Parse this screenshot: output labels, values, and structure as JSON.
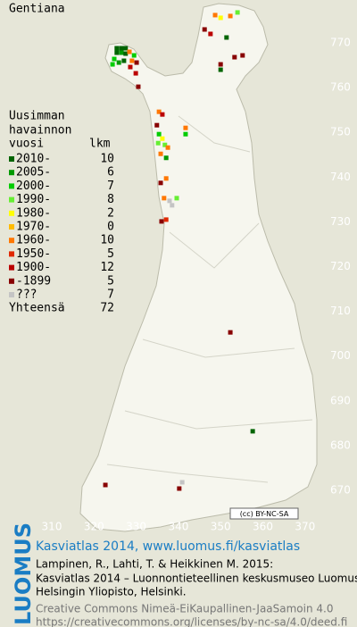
{
  "title": "Gentiana",
  "legend": {
    "heading": [
      "Uusimman",
      "havainnon",
      "vuosi"
    ],
    "count_heading": "lkm",
    "rows": [
      {
        "label": "2010-",
        "count": 10,
        "color": "#006400"
      },
      {
        "label": "2005-",
        "count": 6,
        "color": "#009a00"
      },
      {
        "label": "2000-",
        "count": 7,
        "color": "#00cc00"
      },
      {
        "label": "1990-",
        "count": 8,
        "color": "#66ee33"
      },
      {
        "label": "1980-",
        "count": 2,
        "color": "#ffff00"
      },
      {
        "label": "1970-",
        "count": 0,
        "color": "#ffbb00"
      },
      {
        "label": "1960-",
        "count": 10,
        "color": "#ff7700"
      },
      {
        "label": "1950-",
        "count": 5,
        "color": "#e02800"
      },
      {
        "label": "1900-",
        "count": 12,
        "color": "#bb0000"
      },
      {
        "label": "-1899",
        "count": 5,
        "color": "#880000"
      },
      {
        "label": "???",
        "count": 7,
        "color": "#c4c4c4"
      }
    ],
    "total_label": "Yhteensä",
    "total": 72
  },
  "axes": {
    "x_ticks": [
      310,
      320,
      330,
      340,
      350,
      360,
      370
    ],
    "y_ticks": [
      770,
      760,
      750,
      740,
      730,
      720,
      710,
      700,
      690,
      680,
      670
    ]
  },
  "squares": [
    [
      348.7,
      776.2,
      6
    ],
    [
      350.0,
      775.6,
      4
    ],
    [
      352.3,
      776.0,
      6
    ],
    [
      354.0,
      776.8,
      3
    ],
    [
      346.2,
      773.0,
      9
    ],
    [
      347.6,
      772.0,
      8
    ],
    [
      351.4,
      771.2,
      0
    ],
    [
      353.3,
      766.8,
      9
    ],
    [
      355.2,
      767.2,
      9
    ],
    [
      350.0,
      765.2,
      9
    ],
    [
      350.0,
      764.0,
      0
    ],
    [
      325.4,
      768.8,
      0
    ],
    [
      326.5,
      768.8,
      0
    ],
    [
      327.5,
      768.8,
      0
    ],
    [
      325.4,
      767.8,
      0
    ],
    [
      326.5,
      767.8,
      1
    ],
    [
      327.5,
      767.6,
      0
    ],
    [
      324.8,
      766.4,
      2
    ],
    [
      325.9,
      765.6,
      1
    ],
    [
      327.1,
      766.0,
      0
    ],
    [
      328.4,
      768.0,
      6
    ],
    [
      329.5,
      767.2,
      2
    ],
    [
      329.0,
      766.0,
      6
    ],
    [
      330.1,
      765.6,
      9
    ],
    [
      328.6,
      764.6,
      8
    ],
    [
      329.9,
      763.2,
      8
    ],
    [
      324.4,
      765.2,
      2
    ],
    [
      330.5,
      760.2,
      9
    ],
    [
      335.4,
      754.6,
      6
    ],
    [
      336.2,
      754.0,
      8
    ],
    [
      334.9,
      751.6,
      9
    ],
    [
      335.4,
      749.6,
      2
    ],
    [
      336.2,
      748.6,
      4
    ],
    [
      335.2,
      747.6,
      3
    ],
    [
      336.8,
      747.2,
      3
    ],
    [
      335.8,
      745.2,
      6
    ],
    [
      337.1,
      744.3,
      1
    ],
    [
      341.7,
      751.0,
      6
    ],
    [
      341.7,
      749.6,
      2
    ],
    [
      337.5,
      746.6,
      6
    ],
    [
      335.8,
      738.7,
      9
    ],
    [
      337.1,
      739.7,
      6
    ],
    [
      336.6,
      735.3,
      6
    ],
    [
      337.9,
      734.7,
      10
    ],
    [
      339.6,
      735.3,
      3
    ],
    [
      338.5,
      733.7,
      10
    ],
    [
      337.1,
      730.5,
      7
    ],
    [
      336.0,
      730.1,
      9
    ],
    [
      352.3,
      705.3,
      9
    ],
    [
      357.6,
      683.2,
      0
    ],
    [
      322.7,
      671.2,
      9
    ],
    [
      340.9,
      671.8,
      10
    ],
    [
      340.2,
      670.4,
      9
    ]
  ],
  "license_badge": "(cc) BY-NC-SA",
  "footer": {
    "logo": "LUOMUS",
    "link": "Kasviatlas 2014, www.luomus.fi/kasviatlas",
    "citation": [
      "Lampinen, R., Lahti, T. & Heikkinen M. 2015:",
      "Kasviatlas 2014 – Luonnontieteellinen keskusmuseo Luomus,",
      "Helsingin Yliopisto, Helsinki."
    ],
    "license": [
      "Creative Commons Nimeä-EiKaupallinen-JaaSamoin 4.0",
      "https://creativecommons.org/licenses/by-nc-sa/4.0/deed.fi"
    ]
  }
}
